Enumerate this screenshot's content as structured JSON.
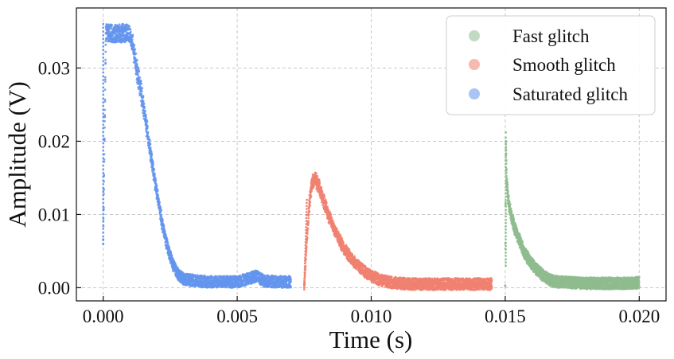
{
  "chart_data": {
    "type": "scatter",
    "title": "",
    "xlabel": "Time (s)",
    "ylabel": "Amplitude (V)",
    "xlim": [
      -0.001,
      0.021
    ],
    "ylim": [
      -0.0018,
      0.0382
    ],
    "xticks": [
      0.0,
      0.005,
      0.01,
      0.015,
      0.02
    ],
    "xtick_labels": [
      "0.000",
      "0.005",
      "0.010",
      "0.015",
      "0.020"
    ],
    "yticks": [
      0.0,
      0.01,
      0.02,
      0.03
    ],
    "ytick_labels": [
      "0.00",
      "0.01",
      "0.02",
      "0.03"
    ],
    "grid": true,
    "legend_position": "top-right",
    "series": [
      {
        "name": "Fast glitch",
        "color": "#8fbc8f",
        "x": [
          0.015,
          0.01502,
          0.01505,
          0.0151,
          0.01515,
          0.0152,
          0.0153,
          0.0154,
          0.0155,
          0.0156,
          0.0157,
          0.0158,
          0.016,
          0.0162,
          0.0164,
          0.0166,
          0.0168,
          0.017,
          0.0175,
          0.018,
          0.0185,
          0.019,
          0.0195,
          0.02
        ],
        "y": [
          0.0,
          0.0205,
          0.015,
          0.0125,
          0.0112,
          0.0102,
          0.0088,
          0.0077,
          0.0067,
          0.0058,
          0.005,
          0.0043,
          0.0032,
          0.0024,
          0.0017,
          0.0012,
          0.0009,
          0.0008,
          0.0007,
          0.0006,
          0.0006,
          0.0006,
          0.0006,
          0.0007
        ]
      },
      {
        "name": "Smooth glitch",
        "color": "#f08070",
        "x": [
          0.0075,
          0.0076,
          0.0077,
          0.0078,
          0.0079,
          0.008,
          0.0081,
          0.0082,
          0.0083,
          0.0084,
          0.0086,
          0.0088,
          0.009,
          0.0092,
          0.0094,
          0.0096,
          0.0098,
          0.01,
          0.0103,
          0.0106,
          0.011,
          0.0115,
          0.012,
          0.0125,
          0.013,
          0.0135,
          0.014,
          0.0145
        ],
        "y": [
          0.0,
          0.007,
          0.012,
          0.0145,
          0.0148,
          0.0142,
          0.0132,
          0.0122,
          0.0111,
          0.01,
          0.0082,
          0.0066,
          0.0053,
          0.0043,
          0.0034,
          0.0027,
          0.0021,
          0.0016,
          0.0011,
          0.0008,
          0.0006,
          0.0005,
          0.0005,
          0.0005,
          0.0005,
          0.0005,
          0.0005,
          0.0005
        ]
      },
      {
        "name": "Saturated glitch",
        "color": "#6495ed",
        "x": [
          0.0,
          0.0001,
          0.0003,
          0.0006,
          0.0009,
          0.001,
          0.0011,
          0.0012,
          0.0014,
          0.0016,
          0.0018,
          0.002,
          0.0022,
          0.0024,
          0.0026,
          0.0028,
          0.003,
          0.0035,
          0.004,
          0.0045,
          0.005,
          0.0055,
          0.0057,
          0.006,
          0.0065,
          0.007
        ],
        "y": [
          0.0065,
          0.035,
          0.035,
          0.035,
          0.035,
          0.0345,
          0.033,
          0.031,
          0.027,
          0.0225,
          0.0175,
          0.013,
          0.0088,
          0.0055,
          0.0032,
          0.0018,
          0.0012,
          0.0009,
          0.0008,
          0.0008,
          0.0008,
          0.0013,
          0.0016,
          0.0009,
          0.0008,
          0.0008
        ]
      }
    ]
  }
}
